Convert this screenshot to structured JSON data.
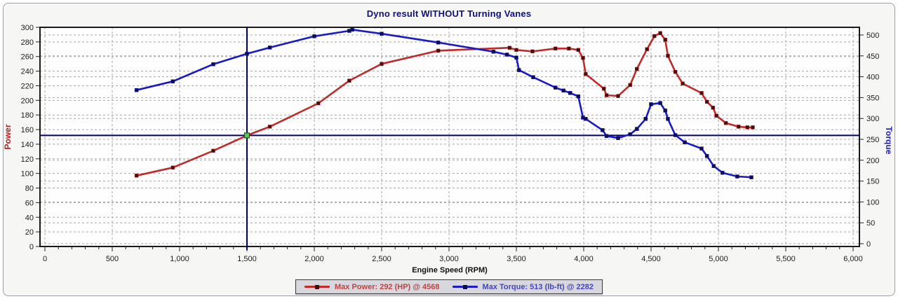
{
  "title": "Dyno result WITHOUT Turning Vanes",
  "axes": {
    "x": {
      "label": "Engine Speed (RPM)",
      "tick_labels": [
        "0",
        "500",
        "1,000",
        "1,500",
        "2,000",
        "2,500",
        "3,000",
        "3,500",
        "4,000",
        "4,500",
        "5,000",
        "5,500",
        "6,000"
      ],
      "major_step": 500,
      "minor_step": 100,
      "range": [
        0,
        6000
      ]
    },
    "power": {
      "label": "Power",
      "tick_labels": [
        "0",
        "20",
        "40",
        "60",
        "80",
        "100",
        "120",
        "140",
        "160",
        "180",
        "200",
        "220",
        "240",
        "260",
        "280",
        "300"
      ],
      "tick_step": 20,
      "range": [
        0,
        300
      ],
      "label_color": "#b22222"
    },
    "torque": {
      "label": "Torque",
      "tick_labels": [
        "0",
        "50",
        "100",
        "150",
        "200",
        "250",
        "300",
        "350",
        "400",
        "450",
        "500"
      ],
      "tick_step": 50,
      "label_color": "#2121b0"
    }
  },
  "cursor": {
    "rpm": 1500,
    "power": 152,
    "marker_fill": "#5fc25f",
    "marker_stroke": "#166016",
    "line_color": "#00006b"
  },
  "legend": {
    "items": [
      {
        "label": "Max Power: 292 (HP) @ 4568",
        "line_color": "#c22a2a",
        "marker_color": "#430e0e",
        "text_color": "#bb4545"
      },
      {
        "label": "Max Torque: 513 (lb-ft) @ 2282",
        "line_color": "#1a1ac6",
        "marker_color": "#0e0e4a",
        "text_color": "#4545bb"
      }
    ]
  },
  "colors": {
    "title": "#10107e",
    "frame": "#1a1a1a",
    "grid": "#a8a8a8",
    "tick_text": "#1c1c1c",
    "plot_bg": "#fefefe"
  },
  "chart_data": {
    "type": "line",
    "title": "Dyno result WITHOUT Turning Vanes",
    "xlabel": "Engine Speed (RPM)",
    "x_range": [
      0,
      6000
    ],
    "grid": true,
    "legend_position": "bottom-center",
    "annotations": {
      "max_power": "292 HP @ 4568 RPM",
      "max_torque": "513 lb-ft @ 2282 RPM",
      "cursor_crosshair": {
        "rpm": 1500,
        "power": 152
      }
    },
    "series": [
      {
        "name": "Power (HP)",
        "axis": "left",
        "ylim": [
          0,
          300
        ],
        "color": "#c22a2a",
        "marker_color": "#430e0e",
        "points": [
          [
            680,
            97
          ],
          [
            950,
            108
          ],
          [
            1250,
            131
          ],
          [
            1500,
            152
          ],
          [
            1670,
            164
          ],
          [
            2030,
            196
          ],
          [
            2260,
            227
          ],
          [
            2500,
            250
          ],
          [
            2920,
            268
          ],
          [
            3450,
            272
          ],
          [
            3500,
            269
          ],
          [
            3620,
            267
          ],
          [
            3790,
            271
          ],
          [
            3890,
            271
          ],
          [
            3960,
            269
          ],
          [
            3995,
            258
          ],
          [
            4015,
            236
          ],
          [
            4150,
            216
          ],
          [
            4170,
            207
          ],
          [
            4255,
            206
          ],
          [
            4345,
            221
          ],
          [
            4395,
            243
          ],
          [
            4470,
            270
          ],
          [
            4525,
            288
          ],
          [
            4568,
            292
          ],
          [
            4605,
            283
          ],
          [
            4625,
            261
          ],
          [
            4680,
            239
          ],
          [
            4735,
            223
          ],
          [
            4875,
            210
          ],
          [
            4915,
            198
          ],
          [
            4960,
            190
          ],
          [
            4985,
            179
          ],
          [
            5055,
            169
          ],
          [
            5150,
            164
          ],
          [
            5215,
            163
          ],
          [
            5255,
            163
          ]
        ]
      },
      {
        "name": "Torque (lb-ft)",
        "axis": "right",
        "ylim": [
          0,
          518
        ],
        "color": "#1a1ac6",
        "marker_color": "#0e0e4a",
        "points": [
          [
            680,
            368
          ],
          [
            950,
            389
          ],
          [
            1250,
            430
          ],
          [
            1500,
            455
          ],
          [
            1670,
            470
          ],
          [
            2000,
            497
          ],
          [
            2260,
            510
          ],
          [
            2282,
            513
          ],
          [
            2500,
            503
          ],
          [
            2920,
            482
          ],
          [
            3330,
            460
          ],
          [
            3430,
            453
          ],
          [
            3500,
            446
          ],
          [
            3520,
            416
          ],
          [
            3625,
            399
          ],
          [
            3790,
            374
          ],
          [
            3850,
            367
          ],
          [
            3900,
            361
          ],
          [
            3960,
            353
          ],
          [
            3995,
            302
          ],
          [
            4015,
            299
          ],
          [
            4140,
            272
          ],
          [
            4170,
            258
          ],
          [
            4255,
            253
          ],
          [
            4345,
            262
          ],
          [
            4395,
            275
          ],
          [
            4460,
            299
          ],
          [
            4500,
            334
          ],
          [
            4568,
            337
          ],
          [
            4605,
            319
          ],
          [
            4625,
            299
          ],
          [
            4680,
            260
          ],
          [
            4750,
            243
          ],
          [
            4875,
            228
          ],
          [
            4915,
            210
          ],
          [
            4965,
            186
          ],
          [
            5030,
            170
          ],
          [
            5140,
            161
          ],
          [
            5245,
            159
          ]
        ]
      }
    ]
  }
}
